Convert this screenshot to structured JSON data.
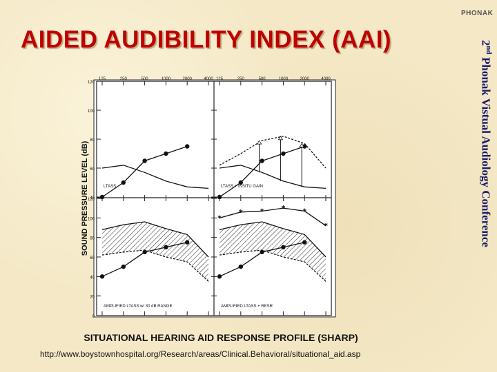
{
  "slide": {
    "title": "AIDED AUDIBILITY INDEX (AAI)",
    "logo": "PHONAK",
    "side_text_main": "2",
    "side_text_sup": "nd",
    "side_text_rest": " Phonak Vistual Audiology Conference",
    "caption": "SITUATIONAL HEARING AID RESPONSE PROFILE (SHARP)",
    "source_url": "http://www.boystownhospital.org/Research/areas/Clinical.Behavioral/situational_aid.asp"
  },
  "colors": {
    "title": "#c00000",
    "ink": "#111111",
    "panel": "#ffffff",
    "hatch": "#333333"
  },
  "chart_data": {
    "type": "line",
    "ylabel": "SOUND PRESSURE LEVEL (dB)",
    "ylim": [
      0,
      120
    ],
    "upper_ylim": [
      40,
      120
    ],
    "upper_ticks": [
      40,
      60,
      80,
      100,
      120
    ],
    "lower_ylim": [
      0,
      120
    ],
    "lower_ticks": [
      0,
      20,
      40,
      60,
      80,
      100,
      120
    ],
    "x_categories": [
      "125",
      "250",
      "500",
      "1000",
      "2000",
      "4000"
    ],
    "x_tick_labels": [
      "125",
      "250",
      "500",
      "1000",
      "2000",
      "4000"
    ],
    "panels": [
      {
        "label": "LTASS",
        "series": [
          {
            "name": "LTASS",
            "style": "solid",
            "values": [
              60,
              62,
              57,
              51,
              47,
              46
            ]
          },
          {
            "name": "Threshold",
            "style": "solid-dots",
            "values": [
              40,
              50,
              65,
              70,
              75,
              null
            ]
          }
        ]
      },
      {
        "label": "LTASS + INSITU GAIN",
        "series": [
          {
            "name": "LTASS",
            "style": "solid",
            "values": [
              60,
              62,
              57,
              51,
              47,
              46
            ]
          },
          {
            "name": "LTASS + insitu gain",
            "style": "dashed",
            "values": [
              62,
              70,
              79,
              82,
              77,
              60
            ]
          },
          {
            "name": "Threshold",
            "style": "solid-dots",
            "values": [
              40,
              50,
              65,
              70,
              75,
              null
            ]
          }
        ]
      },
      {
        "label": "AMPLIFIED LTASS w/ 30 dB RANGE",
        "series": [
          {
            "name": "Range upper",
            "style": "solid",
            "values": [
              88,
              93,
              96,
              89,
              83,
              60
            ]
          },
          {
            "name": "Range lower",
            "style": "dashed",
            "values": [
              62,
              65,
              67,
              60,
              55,
              35
            ]
          },
          {
            "name": "Threshold",
            "style": "solid-dots",
            "values": [
              40,
              50,
              65,
              70,
              75,
              null
            ]
          }
        ]
      },
      {
        "label": "AMPLIFIED LTASS + RESR",
        "series": [
          {
            "name": "Range upper",
            "style": "solid",
            "values": [
              88,
              93,
              96,
              89,
              83,
              60
            ]
          },
          {
            "name": "Range lower",
            "style": "dashed",
            "values": [
              62,
              65,
              67,
              60,
              55,
              35
            ]
          },
          {
            "name": "RESR",
            "style": "asterisk",
            "values": [
              100,
              106,
              107,
              110,
              107,
              92
            ]
          },
          {
            "name": "Threshold",
            "style": "solid-dots",
            "values": [
              40,
              50,
              65,
              70,
              75,
              null
            ]
          }
        ]
      }
    ]
  }
}
